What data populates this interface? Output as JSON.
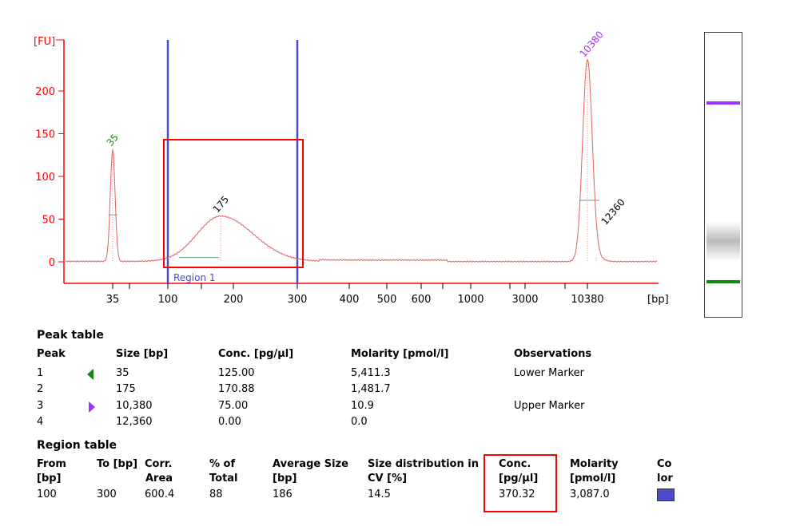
{
  "chart_data": {
    "type": "line",
    "ylabel": "[FU]",
    "xlabel": "[bp]",
    "ylim": [
      -25,
      255
    ],
    "y_ticks": [
      0,
      50,
      100,
      150,
      200
    ],
    "x_ticks": [
      "35",
      "100",
      "200",
      "300",
      "400",
      "500",
      "600",
      "1000",
      "3000",
      "10380"
    ],
    "x_scale": "log (ladder-calibrated)",
    "region": {
      "label": "Region 1",
      "from": 100,
      "to": 300,
      "color": "#4b4bcc"
    },
    "peaks": [
      {
        "label": "35",
        "size": 35,
        "height": 131,
        "color": "#1a8a1a"
      },
      {
        "label": "175",
        "size": 175,
        "height": 53,
        "color": "#000000"
      },
      {
        "label": "10380",
        "size": 10380,
        "height": 235,
        "color": "#9933ff"
      },
      {
        "label": "12360",
        "size": 12360,
        "height": 5,
        "color": "#000000"
      }
    ],
    "line_color": "#e06060",
    "axis_color": "#ff0000"
  },
  "gel": {
    "upper_marker_color": "#9933ff",
    "lower_marker_color": "#118811"
  },
  "peak_table": {
    "title": "Peak table",
    "headers": [
      "Peak",
      "Size [bp]",
      "Conc. [pg/µl]",
      "Molarity [pmol/l]",
      "Observations"
    ],
    "rows": [
      {
        "peak": "1",
        "marker": "lower",
        "size": "35",
        "conc": "125.00",
        "molarity": "5,411.3",
        "obs": "Lower Marker"
      },
      {
        "peak": "2",
        "marker": "",
        "size": "175",
        "conc": "170.88",
        "molarity": "1,481.7",
        "obs": ""
      },
      {
        "peak": "3",
        "marker": "upper",
        "size": "10,380",
        "conc": "75.00",
        "molarity": "10.9",
        "obs": "Upper Marker"
      },
      {
        "peak": "4",
        "marker": "",
        "size": "12,360",
        "conc": "0.00",
        "molarity": "0.0",
        "obs": ""
      }
    ]
  },
  "region_table": {
    "title": "Region table",
    "headers": [
      [
        "From",
        "[bp]"
      ],
      [
        "To [bp]",
        ""
      ],
      [
        "Corr.",
        "Area"
      ],
      [
        "% of",
        "Total"
      ],
      [
        "Average Size",
        "[bp]"
      ],
      [
        "Size distribution in",
        "CV [%]"
      ],
      [
        "Conc.",
        "[pg/µl]"
      ],
      [
        "Molarity",
        "[pmol/l]"
      ],
      [
        "Co",
        "lor"
      ]
    ],
    "row": {
      "from": "100",
      "to": "300",
      "corr_area": "600.4",
      "pct_total": "88",
      "avg_size": "186",
      "cv": "14.5",
      "conc": "370.32",
      "molarity": "3,087.0",
      "color": "#4b4bcc"
    }
  }
}
